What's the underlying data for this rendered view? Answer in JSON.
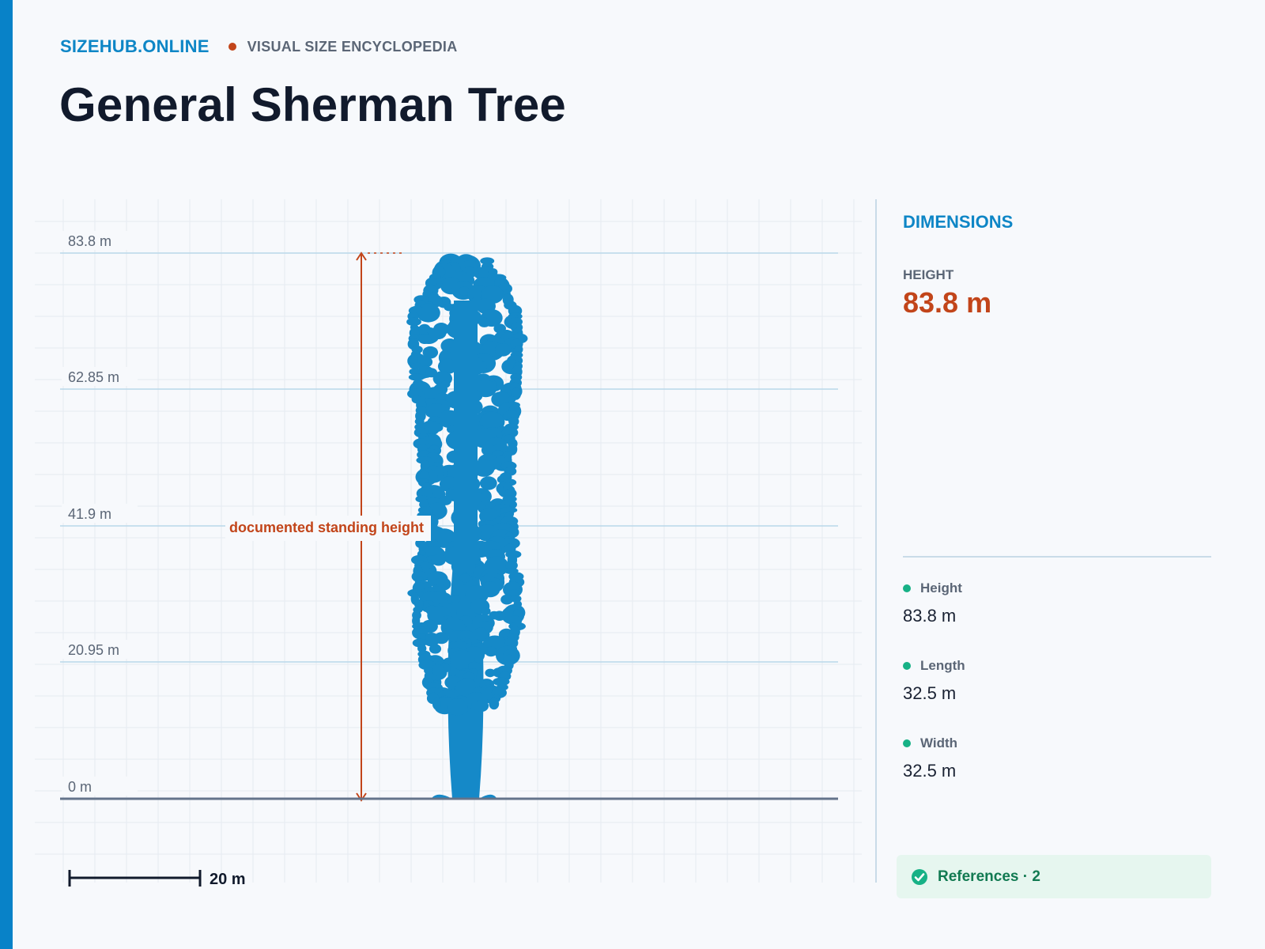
{
  "brand": {
    "name": "SIZEHUB.ONLINE",
    "tagline": "VISUAL SIZE ENCYCLOPEDIA"
  },
  "title": "General Sherman Tree",
  "figure": {
    "axis_labels": [
      "83.8 m",
      "62.85 m",
      "41.9 m",
      "20.95 m",
      "0 m"
    ],
    "annotation": "documented standing height",
    "scale_bar": {
      "label": "20 m",
      "value_m": 20
    },
    "subject_height_m": 83.8,
    "subject_name": "tree-silhouette",
    "colors": {
      "subject": "#1589c8",
      "annotation": "#c2451a",
      "ground": "#64748b"
    }
  },
  "sidebar": {
    "section_title": "DIMENSIONS",
    "primary": {
      "label": "HEIGHT",
      "value": "83.8 m"
    },
    "metrics": [
      {
        "label": "Height",
        "value": "83.8 m"
      },
      {
        "label": "Length",
        "value": "32.5 m"
      },
      {
        "label": "Width",
        "value": "32.5 m"
      }
    ],
    "references": {
      "label": "References · 2",
      "icon": "check-circle-icon"
    }
  }
}
